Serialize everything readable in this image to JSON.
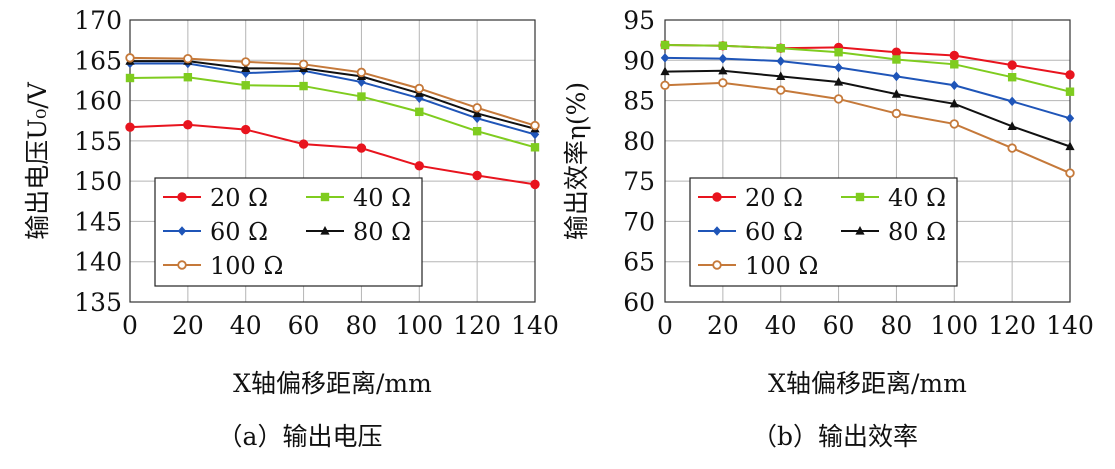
{
  "chart_data": [
    {
      "type": "line",
      "caption": "（a）输出电压",
      "xlabel": "X轴偏移距离/mm",
      "ylabel": "输出电压U₀/V",
      "x": [
        0,
        20,
        40,
        60,
        80,
        100,
        120,
        140
      ],
      "xlim": [
        0,
        140
      ],
      "ylim": [
        135,
        170
      ],
      "xticks": [
        "0",
        "20",
        "40",
        "60",
        "80",
        "100",
        "120",
        "140"
      ],
      "yticks": [
        "135",
        "140",
        "145",
        "150",
        "155",
        "160",
        "165",
        "170"
      ],
      "grid": true,
      "legend_position": "bottom-left",
      "series": [
        {
          "name": "20 Ω",
          "color": "#e8141e",
          "marker": "circle",
          "values": [
            156.7,
            157.0,
            156.4,
            154.6,
            154.1,
            151.9,
            150.7,
            149.6
          ]
        },
        {
          "name": "40 Ω",
          "color": "#7fcc1f",
          "marker": "square",
          "values": [
            162.8,
            162.9,
            161.9,
            161.8,
            160.5,
            158.6,
            156.2,
            154.2
          ]
        },
        {
          "name": "60 Ω",
          "color": "#1f55b8",
          "marker": "diamond",
          "values": [
            164.6,
            164.6,
            163.4,
            163.7,
            162.3,
            160.3,
            157.8,
            155.8
          ]
        },
        {
          "name": "80 Ω",
          "color": "#111111",
          "marker": "triangle",
          "values": [
            164.9,
            164.9,
            164.0,
            164.0,
            163.0,
            160.9,
            158.4,
            156.5
          ]
        },
        {
          "name": "100 Ω",
          "color": "#c5793a",
          "marker": "circle-open",
          "values": [
            165.3,
            165.2,
            164.8,
            164.5,
            163.5,
            161.5,
            159.1,
            156.9
          ]
        }
      ]
    },
    {
      "type": "line",
      "caption": "（b）输出效率",
      "xlabel": "X轴偏移距离/mm",
      "ylabel": "输出效率η(%)",
      "x": [
        0,
        20,
        40,
        60,
        80,
        100,
        120,
        140
      ],
      "xlim": [
        0,
        140
      ],
      "ylim": [
        60,
        95
      ],
      "xticks": [
        "0",
        "20",
        "40",
        "60",
        "80",
        "100",
        "120",
        "140"
      ],
      "yticks": [
        "60",
        "65",
        "70",
        "75",
        "80",
        "85",
        "90",
        "95"
      ],
      "grid": true,
      "legend_position": "bottom-left",
      "series": [
        {
          "name": "20 Ω",
          "color": "#e8141e",
          "marker": "circle",
          "values": [
            91.9,
            91.8,
            91.5,
            91.6,
            91.0,
            90.6,
            89.4,
            88.2
          ]
        },
        {
          "name": "40 Ω",
          "color": "#7fcc1f",
          "marker": "square",
          "values": [
            91.9,
            91.8,
            91.5,
            91.0,
            90.1,
            89.5,
            87.9,
            86.1
          ]
        },
        {
          "name": "60 Ω",
          "color": "#1f55b8",
          "marker": "diamond",
          "values": [
            90.3,
            90.2,
            89.9,
            89.1,
            88.0,
            86.9,
            84.9,
            82.8
          ]
        },
        {
          "name": "80 Ω",
          "color": "#111111",
          "marker": "triangle",
          "values": [
            88.6,
            88.7,
            88.0,
            87.3,
            85.8,
            84.6,
            81.8,
            79.3
          ]
        },
        {
          "name": "100 Ω",
          "color": "#c5793a",
          "marker": "circle-open",
          "values": [
            86.9,
            87.2,
            86.3,
            85.2,
            83.4,
            82.1,
            79.1,
            76.0
          ]
        }
      ]
    }
  ]
}
